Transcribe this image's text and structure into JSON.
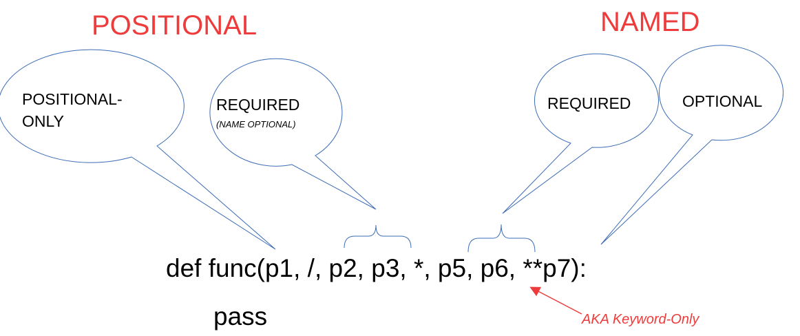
{
  "headings": {
    "positional": "POSITIONAL",
    "named": "NAMED"
  },
  "bubbles": {
    "positional_only_line1": "POSITIONAL-",
    "positional_only_line2": "ONLY",
    "required_positional": "REQUIRED",
    "required_positional_note": "(NAME OPTIONAL)",
    "required_named": "REQUIRED",
    "optional_named": "OPTIONAL"
  },
  "code": {
    "signature": "def func(p1, /, p2, p3, *, p5, p6, **p7):",
    "body": "pass"
  },
  "annotation": {
    "label": "AKA Keyword-Only"
  },
  "colors": {
    "heading": "#ee3b3b",
    "bubble_outline": "#3a6bb5",
    "annotation": "#ee3b3b"
  }
}
